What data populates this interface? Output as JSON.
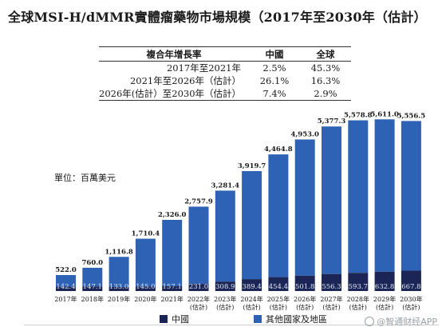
{
  "title": "全球MSI-H/dMMR實體瘤藥物市場規模（2017年至2030年（估計）",
  "cagr_table": {
    "headers": [
      "複合年增長率",
      "中國",
      "全球"
    ],
    "rows": [
      {
        "period": "2017年至2021年",
        "china": "2.5%",
        "global": "45.3%"
      },
      {
        "period": "2021年至2026年（估計）",
        "china": "26.1%",
        "global": "16.3%"
      },
      {
        "period": "2026年(估計）至2030年（估計）",
        "china": "7.4%",
        "global": "2.9%"
      }
    ]
  },
  "unit_label": "單位：百萬美元",
  "chart_data": {
    "type": "bar",
    "stacked": true,
    "categories": [
      "2017年",
      "2018年",
      "2019年",
      "2020年",
      "2021年",
      "2022年 (估計)",
      "2023年 (估計)",
      "2024年 (估計)",
      "2025年 (估計)",
      "2026年 (估計)",
      "2027年 (估計)",
      "2028年 (估計)",
      "2029年 (估計)",
      "2030年 (估計)"
    ],
    "totals": [
      522.0,
      760.0,
      1116.8,
      1710.4,
      2326.0,
      2757.9,
      3281.4,
      3919.7,
      4464.8,
      4953.0,
      5377.3,
      5578.8,
      5611.0,
      5556.5
    ],
    "total_labels": [
      "522.0",
      "760.0",
      "1,116.8",
      "1,710.4",
      "2,326.0",
      "2,757.9",
      "3,281.4",
      "3,919.7",
      "4,464.8",
      "4,953.0",
      "5,377.3",
      "5,578.8",
      "5,611.0",
      "5,556.5"
    ],
    "series": [
      {
        "name": "中國",
        "color": "#1b2656",
        "values": [
          142.4,
          147.1,
          133.0,
          145.0,
          157.1,
          231.0,
          308.9,
          389.4,
          454.4,
          501.8,
          556.3,
          593.7,
          632.8,
          667.8
        ]
      },
      {
        "name": "其他國家及地區",
        "color": "#2e62b5"
      }
    ],
    "legend_position": "bottom",
    "grid": false,
    "ylim": [
      0,
      6000
    ]
  },
  "watermark": "@智通财经APP"
}
